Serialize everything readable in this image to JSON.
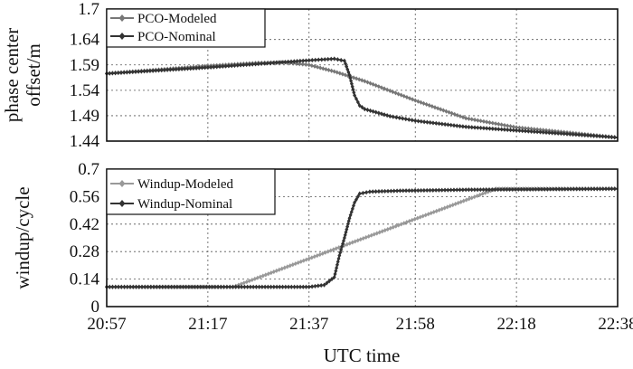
{
  "chart_data": [
    {
      "type": "line",
      "ylabel_lines": [
        "phase center",
        "offset/m"
      ],
      "ylim": [
        1.44,
        1.7
      ],
      "yticks": [
        "1.7",
        "1.64",
        "1.59",
        "1.54",
        "1.49",
        "1.44"
      ],
      "xlim": [
        "20:57",
        "22:38"
      ],
      "grid": true,
      "legend_position": "top-left",
      "series": [
        {
          "name": "PCO-Modeled",
          "color": "#777777",
          "x": [
            "20:57",
            "21:17",
            "21:27",
            "21:32",
            "21:37",
            "21:42",
            "21:48",
            "21:58",
            "22:08",
            "22:18",
            "22:28",
            "22:38"
          ],
          "y": [
            1.573,
            1.588,
            1.594,
            1.595,
            1.59,
            1.577,
            1.558,
            1.52,
            1.485,
            1.467,
            1.457,
            1.447
          ]
        },
        {
          "name": "PCO-Nominal",
          "color": "#333333",
          "x": [
            "20:57",
            "21:17",
            "21:27",
            "21:37",
            "21:42",
            "21:44",
            "21:45",
            "21:46",
            "21:47",
            "21:48",
            "21:53",
            "21:58",
            "22:08",
            "22:18",
            "22:28",
            "22:38"
          ],
          "y": [
            1.573,
            1.585,
            1.592,
            1.599,
            1.602,
            1.598,
            1.57,
            1.53,
            1.51,
            1.503,
            1.489,
            1.48,
            1.468,
            1.461,
            1.454,
            1.447
          ]
        }
      ]
    },
    {
      "type": "line",
      "ylabel": "windup/cycle",
      "xlabel": "UTC time",
      "ylim": [
        0,
        0.7
      ],
      "yticks": [
        "0.7",
        "0.56",
        "0.42",
        "0.28",
        "0.14",
        "0"
      ],
      "xticks": [
        "20:57",
        "21:17",
        "21:37",
        "21:58",
        "22:18",
        "22:38"
      ],
      "grid": true,
      "legend_position": "top-left",
      "series": [
        {
          "name": "Windup-Modeled",
          "color": "#999999",
          "x": [
            "20:57",
            "21:17",
            "21:22",
            "22:14",
            "22:38"
          ],
          "y": [
            0.1,
            0.1,
            0.1,
            0.6,
            0.6
          ]
        },
        {
          "name": "Windup-Nominal",
          "color": "#333333",
          "x": [
            "20:57",
            "21:37",
            "21:40",
            "21:42",
            "21:43",
            "21:44",
            "21:45",
            "21:46",
            "21:47",
            "21:49",
            "21:55",
            "22:08",
            "22:38"
          ],
          "y": [
            0.1,
            0.1,
            0.11,
            0.15,
            0.26,
            0.35,
            0.45,
            0.53,
            0.575,
            0.585,
            0.59,
            0.595,
            0.6
          ]
        }
      ]
    }
  ]
}
